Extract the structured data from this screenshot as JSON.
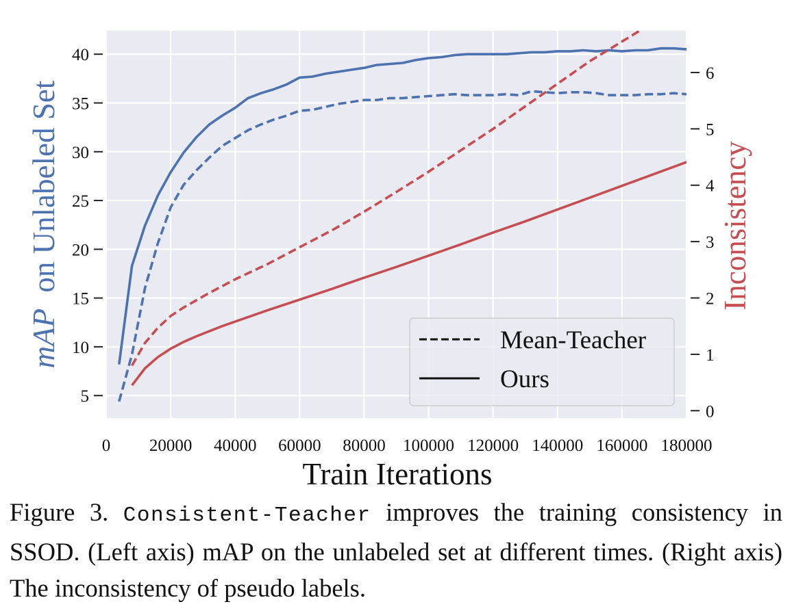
{
  "chart_data": {
    "type": "line",
    "xlabel": "Train Iterations",
    "ylabel_left": "on Unlabeled Set",
    "ylabel_left_italic": "mAP",
    "ylabel_right": "Inconsistency",
    "xlim": [
      0,
      180000
    ],
    "ylim_left": [
      2.7,
      42.4
    ],
    "ylim_right": [
      -0.13,
      6.74
    ],
    "x_ticks": [
      "0",
      "20000",
      "40000",
      "60000",
      "80000",
      "100000",
      "120000",
      "140000",
      "160000",
      "180000"
    ],
    "y_left_ticks": [
      "5",
      "10",
      "15",
      "20",
      "25",
      "30",
      "35",
      "40"
    ],
    "y_right_ticks": [
      "0",
      "1",
      "2",
      "3",
      "4",
      "5",
      "6"
    ],
    "grid": true,
    "legend": {
      "placement": "lower-right",
      "entries": [
        {
          "label": "Mean-Teacher",
          "style": "dashed"
        },
        {
          "label": "Ours",
          "style": "solid"
        }
      ]
    },
    "colors": {
      "map": "#4c72b0",
      "inconsistency": "#c44e52",
      "plot_bg": "#eaeaf2",
      "grid": "#ffffff"
    },
    "series": [
      {
        "id": "ours_map",
        "axis": "left",
        "style": "solid",
        "color": "#4c72b0",
        "x": [
          4000,
          8000,
          12000,
          16000,
          20000,
          24000,
          28000,
          32000,
          36000,
          40000,
          44000,
          48000,
          52000,
          56000,
          60000,
          64000,
          68000,
          72000,
          76000,
          80000,
          84000,
          88000,
          92000,
          96000,
          100000,
          104000,
          108000,
          112000,
          116000,
          120000,
          124000,
          128000,
          132000,
          136000,
          140000,
          144000,
          148000,
          152000,
          156000,
          160000,
          164000,
          168000,
          172000,
          176000,
          180000
        ],
        "values": [
          8.2,
          18.3,
          22.4,
          25.5,
          27.9,
          29.9,
          31.5,
          32.8,
          33.7,
          34.5,
          35.5,
          36.0,
          36.4,
          36.9,
          37.6,
          37.7,
          38.0,
          38.2,
          38.4,
          38.6,
          38.9,
          39.0,
          39.1,
          39.4,
          39.6,
          39.7,
          39.9,
          40.0,
          40.0,
          40.0,
          40.0,
          40.1,
          40.2,
          40.2,
          40.3,
          40.3,
          40.4,
          40.3,
          40.4,
          40.3,
          40.4,
          40.4,
          40.6,
          40.6,
          40.5
        ]
      },
      {
        "id": "mean_teacher_map",
        "axis": "left",
        "style": "dashed",
        "color": "#4c72b0",
        "x": [
          4000,
          8000,
          12000,
          16000,
          20000,
          24000,
          28000,
          32000,
          36000,
          40000,
          44000,
          48000,
          52000,
          56000,
          60000,
          64000,
          68000,
          72000,
          76000,
          80000,
          84000,
          88000,
          92000,
          96000,
          100000,
          104000,
          108000,
          112000,
          116000,
          120000,
          124000,
          128000,
          132000,
          136000,
          140000,
          144000,
          148000,
          152000,
          156000,
          160000,
          164000,
          168000,
          172000,
          176000,
          180000
        ],
        "values": [
          4.4,
          9.2,
          16.0,
          20.6,
          24.3,
          26.6,
          28.1,
          29.4,
          30.6,
          31.4,
          32.2,
          32.8,
          33.3,
          33.7,
          34.2,
          34.3,
          34.6,
          34.9,
          35.1,
          35.3,
          35.3,
          35.5,
          35.5,
          35.6,
          35.7,
          35.8,
          35.9,
          35.8,
          35.8,
          35.8,
          35.9,
          35.8,
          36.2,
          36.1,
          36.0,
          36.1,
          36.1,
          36.0,
          35.8,
          35.8,
          35.8,
          35.9,
          35.9,
          36.0,
          35.9
        ]
      },
      {
        "id": "ours_inconsistency",
        "axis": "right",
        "style": "solid",
        "color": "#c44e52",
        "x": [
          8000,
          12000,
          16000,
          20000,
          24000,
          28000,
          32000,
          36000,
          40000,
          50000,
          60000,
          70000,
          80000,
          90000,
          100000,
          110000,
          120000,
          130000,
          140000,
          150000,
          160000,
          170000,
          180000
        ],
        "values": [
          0.45,
          0.75,
          0.95,
          1.1,
          1.22,
          1.32,
          1.41,
          1.5,
          1.58,
          1.78,
          1.97,
          2.16,
          2.36,
          2.55,
          2.75,
          2.95,
          3.16,
          3.36,
          3.57,
          3.78,
          3.99,
          4.2,
          4.41
        ]
      },
      {
        "id": "mean_teacher_inconsistency",
        "axis": "right",
        "style": "dashed",
        "color": "#c44e52",
        "x": [
          8000,
          12000,
          16000,
          20000,
          24000,
          28000,
          32000,
          36000,
          40000,
          50000,
          60000,
          70000,
          80000,
          90000,
          100000,
          110000,
          120000,
          130000,
          140000,
          150000,
          160000,
          170000,
          180000
        ],
        "values": [
          0.8,
          1.2,
          1.47,
          1.68,
          1.83,
          1.96,
          2.09,
          2.21,
          2.33,
          2.6,
          2.9,
          3.2,
          3.53,
          3.88,
          4.24,
          4.62,
          5.0,
          5.4,
          5.8,
          6.2,
          6.55,
          6.9,
          7.28
        ]
      }
    ]
  },
  "caption": {
    "prefix": "Figure 3.",
    "method_name": "Consistent-Teacher",
    "text": "improves the training consistency in SSOD. (Left axis) mAP on the unlabeled set at different times. (Right axis) The inconsistency of pseudo labels."
  }
}
